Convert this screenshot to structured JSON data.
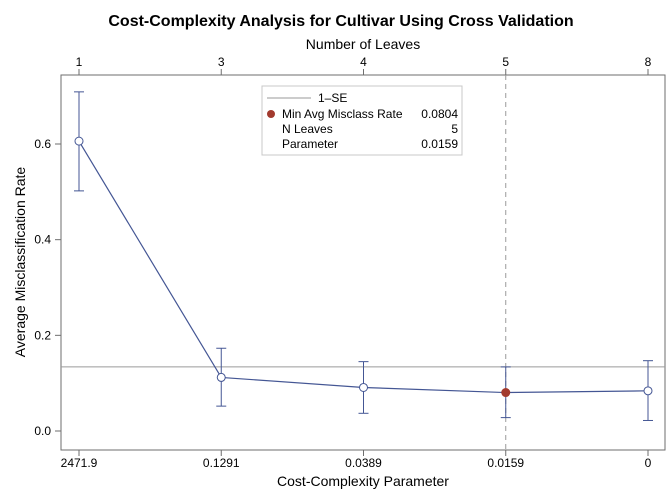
{
  "chart_data": {
    "type": "line",
    "title": "Cost-Complexity Analysis for Cultivar Using Cross Validation",
    "xlabel": "Cost-Complexity Parameter",
    "x2label": "Number of Leaves",
    "ylabel": "Average Misclassification Rate",
    "ylim": [
      0,
      0.7
    ],
    "yticks": [
      0.0,
      0.2,
      0.4,
      0.6
    ],
    "ytick_labels": [
      "0.0",
      "0.2",
      "0.4",
      "0.6"
    ],
    "categories": [
      "2471.9",
      "0.1291",
      "0.0389",
      "0.0159",
      "0"
    ],
    "leaves": [
      "1",
      "3",
      "4",
      "5",
      "8"
    ],
    "series": [
      {
        "values": [
          0.606,
          0.112,
          0.091,
          0.0804,
          0.084
        ],
        "lower": [
          0.502,
          0.052,
          0.037,
          0.028,
          0.022
        ],
        "upper": [
          0.709,
          0.173,
          0.145,
          0.134,
          0.147
        ],
        "color": "#445694"
      }
    ],
    "one_se_line": 0.134,
    "min_index": 3,
    "min_marker_color": "#a23a2e",
    "grid": false,
    "legend": {
      "placement": "top-center",
      "line_label": "1–SE",
      "rows": [
        {
          "label": "Min Avg Misclass Rate",
          "value": "0.0804"
        },
        {
          "label": "N Leaves",
          "value": "5"
        },
        {
          "label": "Parameter",
          "value": "0.0159"
        }
      ]
    }
  }
}
